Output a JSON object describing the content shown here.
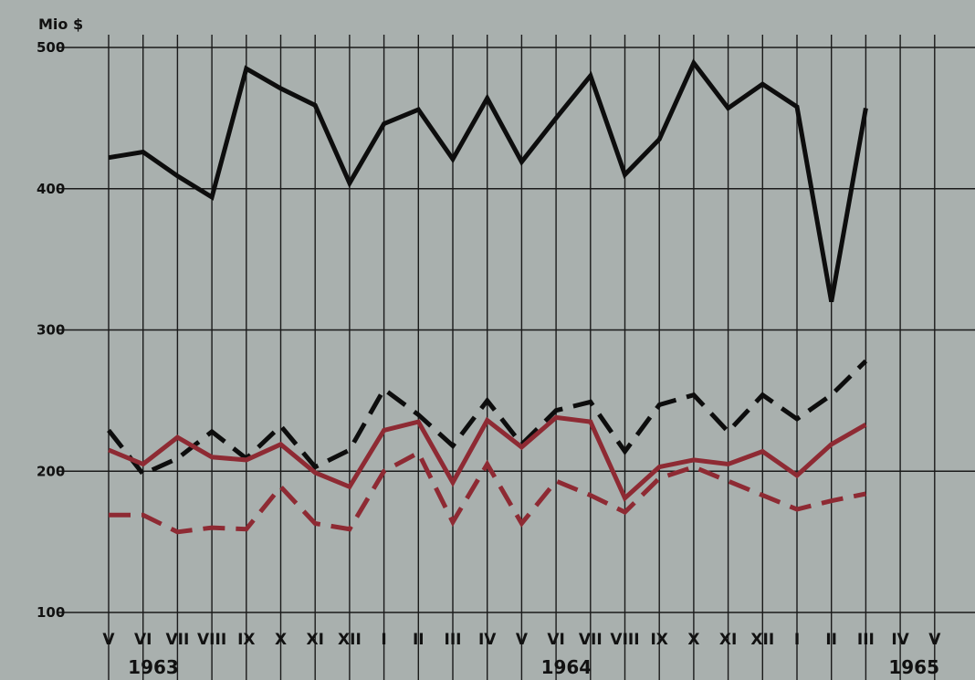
{
  "chart_data": {
    "type": "line",
    "y_unit_label": "Mio $",
    "ylim": [
      100,
      500
    ],
    "yticks": [
      100,
      200,
      300,
      400,
      500
    ],
    "grid": true,
    "months": [
      "V",
      "VI",
      "VII",
      "VIII",
      "IX",
      "X",
      "XI",
      "XII",
      "I",
      "II",
      "III",
      "IV",
      "V",
      "VI",
      "VII",
      "VIII",
      "IX",
      "X",
      "XI",
      "XII",
      "I",
      "II",
      "III",
      "IV",
      "V"
    ],
    "year_labels": [
      {
        "text": "1963",
        "month_index": 1.3
      },
      {
        "text": "1964",
        "month_index": 13.3
      },
      {
        "text": "1965",
        "month_index": 23.4
      }
    ],
    "series": [
      {
        "color": "#0d0d0d",
        "dash": "solid",
        "values": [
          422,
          426,
          409,
          394,
          485,
          471,
          459,
          404,
          446,
          456,
          421,
          464,
          419,
          450,
          480,
          410,
          435,
          489,
          457,
          474,
          458,
          320,
          457
        ]
      },
      {
        "color": "#0d0d0d",
        "dash": "dashed",
        "values": [
          229,
          198,
          209,
          228,
          209,
          232,
          203,
          215,
          258,
          240,
          218,
          250,
          219,
          243,
          249,
          214,
          247,
          254,
          228,
          254,
          237,
          254,
          278
        ]
      },
      {
        "color": "#8e2a33",
        "dash": "solid",
        "values": [
          215,
          205,
          224,
          210,
          208,
          219,
          199,
          189,
          229,
          235,
          192,
          236,
          217,
          238,
          235,
          181,
          203,
          208,
          205,
          214,
          197,
          219,
          233
        ]
      },
      {
        "color": "#8e2a33",
        "dash": "dashed",
        "values": [
          169,
          169,
          157,
          160,
          159,
          189,
          163,
          159,
          200,
          213,
          164,
          205,
          163,
          193,
          183,
          171,
          195,
          203,
          193,
          183,
          173,
          179,
          184
        ]
      }
    ]
  }
}
